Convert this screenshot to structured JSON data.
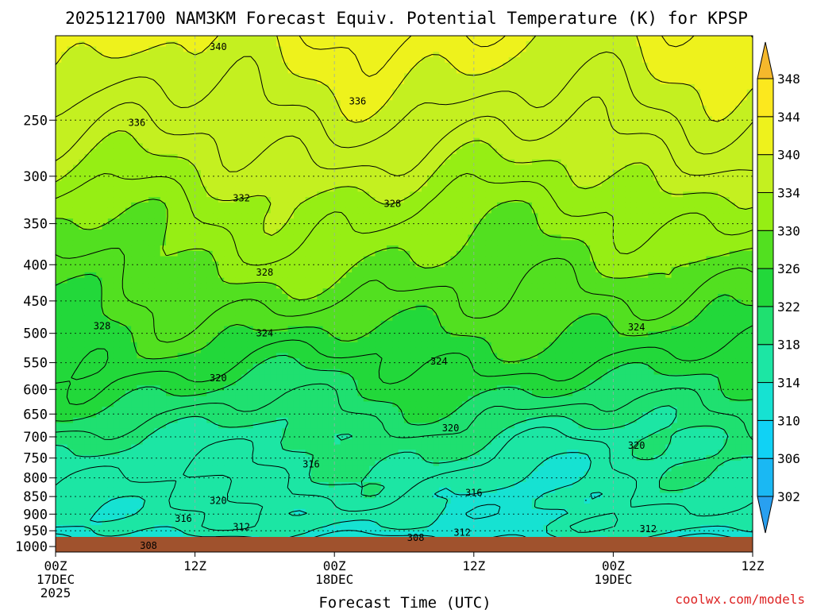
{
  "chart_data": {
    "type": "heatmap",
    "title": "2025121700 NAM3KM Forecast Equiv. Potential Temperature (K) for KPSP",
    "xlabel": "Forecast Time (UTC)",
    "ylabel": "",
    "credit": "coolwx.com/models",
    "x_range_hours": [
      0,
      60
    ],
    "x_ticks": [
      {
        "hour": 0,
        "lines": [
          "00Z",
          "17DEC",
          "2025"
        ]
      },
      {
        "hour": 12,
        "lines": [
          "12Z"
        ]
      },
      {
        "hour": 24,
        "lines": [
          "00Z",
          "18DEC"
        ]
      },
      {
        "hour": 36,
        "lines": [
          "12Z"
        ]
      },
      {
        "hour": 48,
        "lines": [
          "00Z",
          "19DEC"
        ]
      },
      {
        "hour": 60,
        "lines": [
          "12Z"
        ]
      }
    ],
    "y_axis": {
      "units": "hPa",
      "range": [
        190,
        1018
      ],
      "scale": "log",
      "ticks": [
        250,
        300,
        350,
        400,
        450,
        500,
        550,
        600,
        650,
        700,
        750,
        800,
        850,
        900,
        950,
        1000
      ]
    },
    "colorbar": {
      "levels": [
        302,
        306,
        310,
        314,
        318,
        322,
        326,
        330,
        334,
        340,
        344,
        348
      ],
      "colors": [
        "#29a0f0",
        "#1ab8f3",
        "#10d2f5",
        "#16e2d2",
        "#1ce6a4",
        "#1fe070",
        "#22d83a",
        "#52e020",
        "#96ee14",
        "#c4f020",
        "#eef21c",
        "#fce81e",
        "#f5b82c"
      ]
    },
    "contour_labels": [
      {
        "hour": 14,
        "p": 197,
        "value": "340"
      },
      {
        "hour": 7,
        "p": 252,
        "value": "336"
      },
      {
        "hour": 26,
        "p": 235,
        "value": "336"
      },
      {
        "hour": 16,
        "p": 322,
        "value": "332"
      },
      {
        "hour": 29,
        "p": 328,
        "value": "328"
      },
      {
        "hour": 18,
        "p": 410,
        "value": "328"
      },
      {
        "hour": 4,
        "p": 488,
        "value": "328"
      },
      {
        "hour": 18,
        "p": 500,
        "value": "324"
      },
      {
        "hour": 33,
        "p": 548,
        "value": "324"
      },
      {
        "hour": 50,
        "p": 490,
        "value": "324"
      },
      {
        "hour": 14,
        "p": 578,
        "value": "320"
      },
      {
        "hour": 34,
        "p": 680,
        "value": "320"
      },
      {
        "hour": 50,
        "p": 720,
        "value": "320"
      },
      {
        "hour": 22,
        "p": 765,
        "value": "316"
      },
      {
        "hour": 36,
        "p": 840,
        "value": "316"
      },
      {
        "hour": 14,
        "p": 862,
        "value": "320"
      },
      {
        "hour": 11,
        "p": 913,
        "value": "316"
      },
      {
        "hour": 16,
        "p": 938,
        "value": "312"
      },
      {
        "hour": 35,
        "p": 955,
        "value": "312"
      },
      {
        "hour": 51,
        "p": 945,
        "value": "312"
      },
      {
        "hour": 31,
        "p": 972,
        "value": "308"
      },
      {
        "hour": 8,
        "p": 997,
        "value": "308"
      }
    ]
  }
}
